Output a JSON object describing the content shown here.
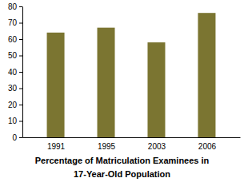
{
  "chart_data": {
    "type": "bar",
    "title": "Percentage of Matriculation Examinees in 17-Year-Old Population",
    "categories": [
      "1991",
      "1995",
      "2003",
      "2006"
    ],
    "values": [
      64,
      67,
      58,
      76
    ],
    "color": "#7b7531",
    "ylim": [
      0,
      80
    ],
    "yticks": [
      0,
      10,
      20,
      30,
      40,
      50,
      60,
      70,
      80
    ],
    "grid": false
  }
}
